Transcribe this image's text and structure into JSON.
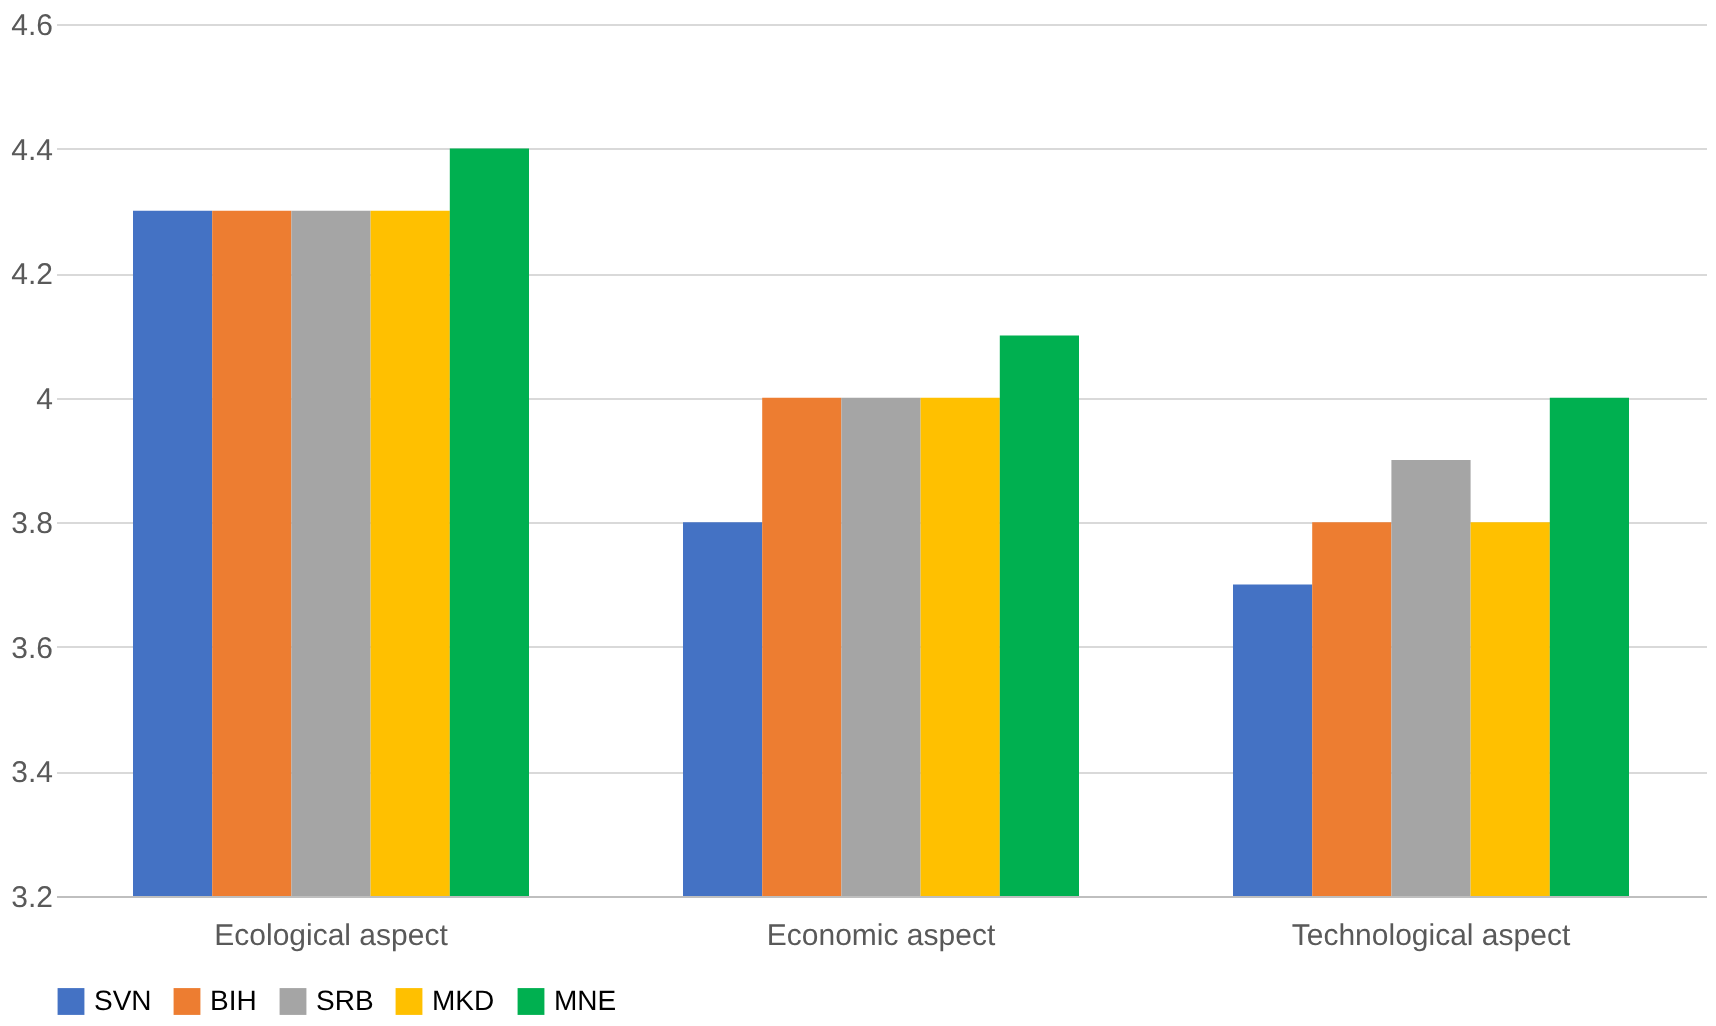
{
  "chart_data": {
    "type": "bar",
    "categories": [
      "Ecological aspect",
      "Economic aspect",
      "Technological aspect"
    ],
    "series": [
      {
        "name": "SVN",
        "color": "#4472c4",
        "values": [
          4.3,
          3.8,
          3.7
        ]
      },
      {
        "name": "BIH",
        "color": "#ed7d31",
        "values": [
          4.3,
          4.0,
          3.8
        ]
      },
      {
        "name": "SRB",
        "color": "#a5a5a5",
        "values": [
          4.3,
          4.0,
          3.9
        ]
      },
      {
        "name": "MKD",
        "color": "#ffc000",
        "values": [
          4.3,
          4.0,
          3.8
        ]
      },
      {
        "name": "MNE",
        "color": "#00b050",
        "values": [
          4.4,
          4.1,
          4.0
        ]
      }
    ],
    "ylim": [
      3.2,
      4.6
    ],
    "yticks": [
      3.2,
      3.4,
      3.6,
      3.8,
      4,
      4.2,
      4.4,
      4.6
    ],
    "grid": "y",
    "legend": "bottom"
  }
}
